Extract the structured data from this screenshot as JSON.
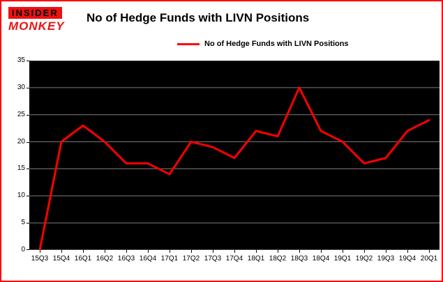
{
  "branding": {
    "line1": "INSIDER",
    "line2": "MONKEY"
  },
  "header": {
    "title": "No of Hedge Funds with LIVN Positions"
  },
  "legend": {
    "label": "No of Hedge Funds with LIVN Positions",
    "color": "#ff0000"
  },
  "colors": {
    "accent": "#ff0000",
    "frame_border": "#ff0000",
    "plot_background": "#000000",
    "gridline": "#7d7d7d",
    "text": "#000000",
    "logo_red": "#ee1111"
  },
  "chart_data": {
    "type": "line",
    "title": "No of Hedge Funds with LIVN Positions",
    "categories": [
      "15Q3",
      "15Q4",
      "16Q1",
      "16Q2",
      "16Q3",
      "16Q4",
      "17Q1",
      "17Q2",
      "17Q3",
      "17Q4",
      "18Q1",
      "18Q2",
      "18Q3",
      "18Q4",
      "19Q1",
      "19Q2",
      "19Q3",
      "19Q4",
      "20Q1"
    ],
    "values": [
      0,
      20,
      23,
      20,
      16,
      16,
      14,
      20,
      19,
      17,
      22,
      21,
      30,
      22,
      20,
      16,
      17,
      22,
      24
    ],
    "xlabel": "",
    "ylabel": "",
    "ylim": [
      0,
      35
    ],
    "yticks": [
      0,
      5,
      10,
      15,
      20,
      25,
      30,
      35
    ],
    "ytick_step": 5,
    "grid": true,
    "legend_position": "top",
    "line_color": "#ff0000",
    "plot_bg": "#000000"
  }
}
